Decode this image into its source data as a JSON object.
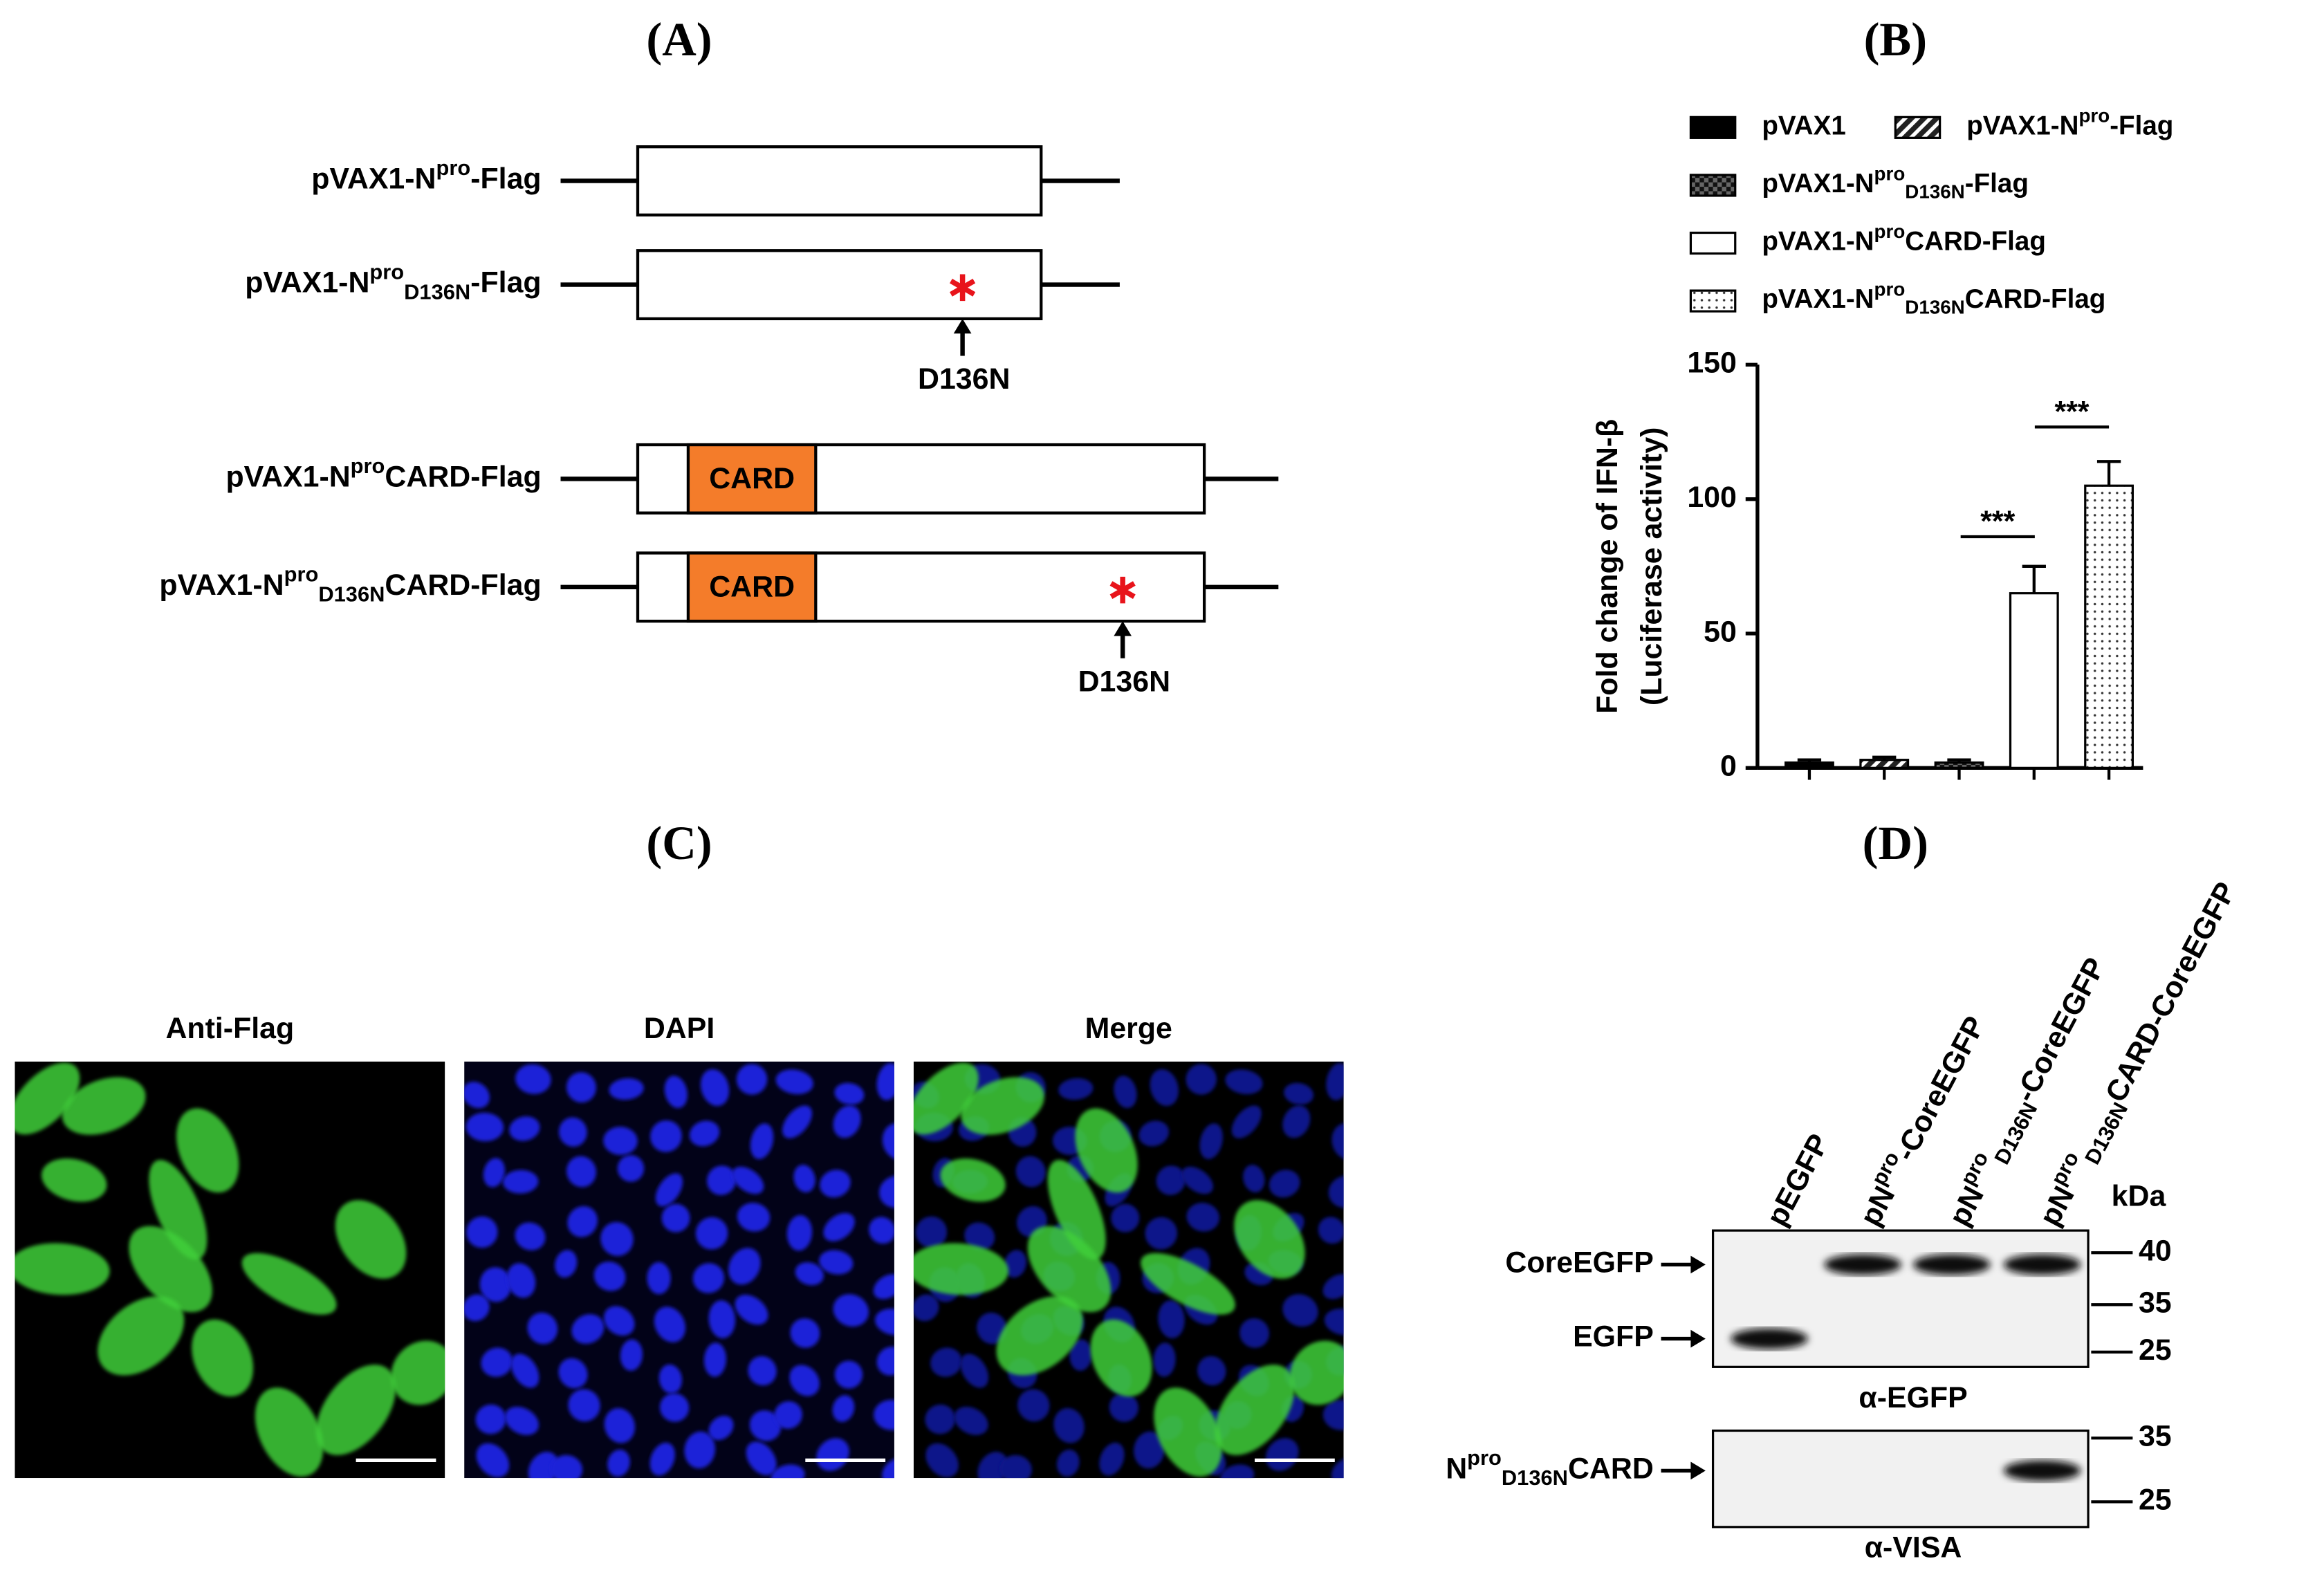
{
  "panels": {
    "a": "(A)",
    "b": "(B)",
    "c": "(C)",
    "d": "(D)"
  },
  "constructs": [
    {
      "label": [
        {
          "text": "pVAX1-N",
          "style": "normal"
        },
        {
          "text": "pro",
          "style": "sup"
        },
        {
          "text": "-Flag",
          "style": "normal"
        }
      ]
    },
    {
      "label": [
        {
          "text": "pVAX1-N",
          "style": "normal"
        },
        {
          "text": "pro",
          "style": "sup"
        },
        {
          "text": "D136N",
          "style": "sub"
        },
        {
          "text": "-Flag",
          "style": "normal"
        }
      ],
      "mutation": "D136N"
    },
    {
      "label": [
        {
          "text": "pVAX1-N",
          "style": "normal"
        },
        {
          "text": "pro",
          "style": "sup"
        },
        {
          "text": "CARD-Flag",
          "style": "normal"
        }
      ],
      "domain": "CARD"
    },
    {
      "label": [
        {
          "text": "pVAX1-N",
          "style": "normal"
        },
        {
          "text": "pro",
          "style": "sup"
        },
        {
          "text": "D136N",
          "style": "sub"
        },
        {
          "text": "CARD-Flag",
          "style": "normal"
        }
      ],
      "domain": "CARD",
      "mutation": "D136N"
    }
  ],
  "chart_data": {
    "type": "bar",
    "ylabel": [
      "Fold change of IFN-β",
      "(Luciferase activity)"
    ],
    "categories": [
      null,
      null,
      null,
      null,
      null
    ],
    "values": [
      2,
      3,
      2,
      65,
      105
    ],
    "errors": [
      1,
      1,
      1,
      10,
      9
    ],
    "patterns": [
      "solid",
      "hatch",
      "checker",
      "open",
      "dots"
    ],
    "color": "#000000",
    "legend": [
      [
        {
          "text": "pVAX1",
          "style": "normal"
        }
      ],
      [
        {
          "text": "pVAX1-N",
          "style": "normal"
        },
        {
          "text": "pro",
          "style": "sup"
        },
        {
          "text": "-Flag",
          "style": "normal"
        }
      ],
      [
        {
          "text": "pVAX1-N",
          "style": "normal"
        },
        {
          "text": "pro",
          "style": "sup"
        },
        {
          "text": "D136N",
          "style": "sub"
        },
        {
          "text": "-Flag",
          "style": "normal"
        }
      ],
      [
        {
          "text": "pVAX1-N",
          "style": "normal"
        },
        {
          "text": "pro",
          "style": "sup"
        },
        {
          "text": "CARD-Flag",
          "style": "normal"
        }
      ],
      [
        {
          "text": "pVAX1-N",
          "style": "normal"
        },
        {
          "text": "pro",
          "style": "sup"
        },
        {
          "text": "D136N",
          "style": "sub"
        },
        {
          "text": "CARD-Flag",
          "style": "normal"
        }
      ]
    ],
    "annotations": [
      "***",
      "***"
    ],
    "ylim": [
      0,
      150
    ],
    "yticks": [
      0,
      50,
      100,
      150
    ]
  },
  "microscopy": {
    "titles": [
      "Anti-Flag",
      "DAPI",
      "Merge"
    ]
  },
  "western_blot": {
    "unit": "kDa",
    "lanes": [
      [
        {
          "text": "pEGFP",
          "style": "normal"
        }
      ],
      [
        {
          "text": "pN",
          "style": "normal"
        },
        {
          "text": "pro",
          "style": "sup"
        },
        {
          "text": "-CoreEGFP",
          "style": "normal"
        }
      ],
      [
        {
          "text": "pN",
          "style": "normal"
        },
        {
          "text": "pro",
          "style": "sup"
        },
        {
          "text": "D136N",
          "style": "sub"
        },
        {
          "text": "-CoreEGFP",
          "style": "normal"
        }
      ],
      [
        {
          "text": "pN",
          "style": "normal"
        },
        {
          "text": "pro",
          "style": "sup"
        },
        {
          "text": "D136N",
          "style": "sub"
        },
        {
          "text": "CARD-CoreEGFP",
          "style": "normal"
        }
      ]
    ],
    "blots": [
      {
        "bands": [
          [
            {
              "text": "CoreEGFP",
              "style": "normal"
            }
          ],
          [
            {
              "text": "EGFP",
              "style": "normal"
            }
          ]
        ],
        "markers": [
          40,
          35,
          25
        ],
        "antibody": "α-EGFP"
      },
      {
        "bands": [
          [
            {
              "text": "N",
              "style": "normal"
            },
            {
              "text": "pro",
              "style": "sup"
            },
            {
              "text": "D136N",
              "style": "sub"
            },
            {
              "text": "CARD",
              "style": "normal"
            }
          ]
        ],
        "markers": [
          35,
          25
        ],
        "antibody": "α-VISA"
      }
    ]
  }
}
